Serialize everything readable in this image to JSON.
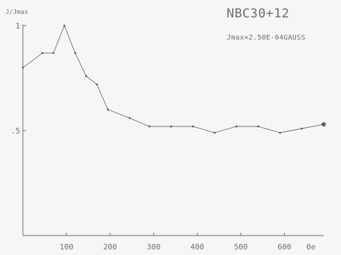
{
  "chart_data": {
    "type": "line",
    "title": "NBC30+12",
    "annotation": "Jmax=2.50E-04GAUSS",
    "xlabel": "",
    "ylabel": "J/Jmax",
    "xunit": "0e",
    "xlim": [
      0,
      690
    ],
    "ylim": [
      0,
      1
    ],
    "xticks": [
      {
        "value": 100,
        "label": "100"
      },
      {
        "value": 200,
        "label": "200"
      },
      {
        "value": 300,
        "label": "300"
      },
      {
        "value": 400,
        "label": "400"
      },
      {
        "value": 500,
        "label": "500"
      },
      {
        "value": 600,
        "label": "600"
      }
    ],
    "yticks": [
      {
        "value": 1,
        "label": "1"
      },
      {
        "value": 0.5,
        "label": ".5"
      }
    ],
    "grid": false,
    "series": [
      {
        "x": [
          0,
          45,
          70,
          95,
          120,
          145,
          170,
          195,
          245,
          290,
          340,
          390,
          440,
          490,
          540,
          590,
          640,
          690
        ],
        "y": [
          0.8,
          0.87,
          0.87,
          1.0,
          0.87,
          0.76,
          0.72,
          0.6,
          0.56,
          0.52,
          0.52,
          0.52,
          0.49,
          0.52,
          0.52,
          0.49,
          0.51,
          0.53
        ]
      }
    ]
  }
}
